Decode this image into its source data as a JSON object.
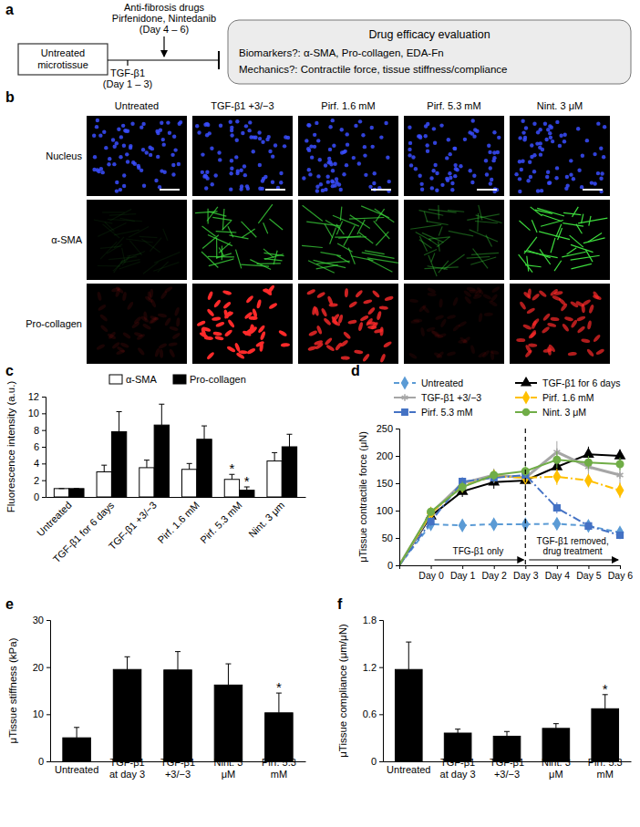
{
  "diagram": {
    "panel_label": "a",
    "drugs": [
      "Anti-fibrosis drugs",
      "Pirfenidone, Nintedanib",
      "(Day 4 – 6)"
    ],
    "start": "Untreated\nmicrotissue",
    "stimulus": [
      "TGF-β1",
      "(Day 1 – 3)"
    ],
    "evaluation": [
      "Drug efficacy evaluation",
      "Biomarkers?: α-SMA, Pro-collagen, EDA-Fn",
      "Mechanics?: Contractile force, tissue stiffness/compliance"
    ]
  },
  "images": {
    "panel_label": "b",
    "columns": [
      "Untreated",
      "TGF-β1 +3/−3",
      "Pirf. 1.6 mM",
      "Pirf. 5.3 mM",
      "Nint. 3 μM"
    ],
    "rows": [
      {
        "name": "Nucleus",
        "color": "#3a4dff"
      },
      {
        "name": "α-SMA",
        "color": "#3ddc3d"
      },
      {
        "name": "Pro-collagen",
        "color": "#ff2a2a"
      }
    ]
  },
  "chart_data": [
    {
      "panel_label": "c",
      "type": "bar",
      "y_label": "Fluorescence intensity (a.u.)",
      "categories": [
        "Untreated",
        "TGF-β1 for 6 days",
        "TGF-β1 +3/−3",
        "Pirf. 1.6 mM",
        "Pirf. 5.3 mM",
        "Nint. 3 μm"
      ],
      "series": [
        {
          "name": "α-SMA",
          "color": "#ffffff",
          "values": [
            1,
            3.0,
            3.5,
            3.3,
            2.1,
            4.3
          ],
          "errors": [
            0,
            0.8,
            0.9,
            0.7,
            0.6,
            1.0
          ]
        },
        {
          "name": "Pro-collagen",
          "color": "#000000",
          "values": [
            1,
            7.8,
            8.6,
            6.9,
            0.8,
            6.0
          ],
          "errors": [
            0,
            2.4,
            2.5,
            1.6,
            0.4,
            1.5
          ]
        }
      ],
      "ylim": [
        0,
        12
      ],
      "yticks": [
        0,
        2,
        4,
        6,
        8,
        10,
        12
      ],
      "legend": "top",
      "annotations": [
        {
          "text": "*",
          "category": 4,
          "series": 0
        },
        {
          "text": "*",
          "category": 4,
          "series": 1
        }
      ]
    },
    {
      "panel_label": "d",
      "type": "line",
      "y_label": "μTissue contractile force (μN)",
      "categories": [
        null,
        "Day 0",
        "Day 1",
        "Day 2",
        "Day 3",
        "Day 4",
        "Day 5",
        "Day 6"
      ],
      "ylim": [
        0,
        250
      ],
      "yticks": [
        0,
        50,
        100,
        150,
        200,
        250
      ],
      "legend": "top left",
      "series": [
        {
          "name": "Untreated",
          "color": "#5b9bd5",
          "marker": "diamond",
          "line_style": "dashed",
          "values": [
            0,
            75,
            73,
            75,
            75,
            76,
            72,
            60
          ],
          "errors": [
            0,
            6,
            4,
            4,
            4,
            4,
            4,
            4
          ]
        },
        {
          "name": "TGF-β1 for 6 days",
          "color": "#000000",
          "marker": "triangle",
          "line_style": "solid",
          "values": [
            0,
            90,
            135,
            152,
            155,
            180,
            203,
            200
          ],
          "errors": [
            0,
            8,
            10,
            12,
            10,
            15,
            14,
            12
          ]
        },
        {
          "name": "TGF-β1 +3/−3",
          "color": "#a6a6a6",
          "marker": "asterisk",
          "line_style": "solid",
          "values": [
            0,
            95,
            150,
            165,
            160,
            207,
            180,
            165
          ],
          "errors": [
            0,
            8,
            10,
            12,
            10,
            20,
            15,
            18
          ]
        },
        {
          "name": "Pirf. 1.6 mM",
          "color": "#ffc000",
          "marker": "diamond",
          "line_style": "dashdot",
          "values": [
            0,
            95,
            145,
            163,
            160,
            162,
            155,
            137
          ],
          "errors": [
            0,
            8,
            10,
            12,
            10,
            15,
            12,
            14
          ]
        },
        {
          "name": "Pirf. 5.3 mM",
          "color": "#4472c4",
          "marker": "square",
          "line_style": "dashdot",
          "values": [
            0,
            80,
            153,
            160,
            165,
            105,
            72,
            55
          ],
          "errors": [
            0,
            8,
            8,
            10,
            10,
            10,
            5,
            5
          ]
        },
        {
          "name": "Nint. 3 μM",
          "color": "#70ad47",
          "marker": "circle",
          "line_style": "solid",
          "values": [
            0,
            98,
            143,
            165,
            172,
            193,
            188,
            185
          ],
          "errors": [
            0,
            8,
            10,
            10,
            10,
            15,
            12,
            12
          ]
        }
      ],
      "annotations": [
        {
          "type": "vline",
          "x": "Day 3"
        },
        {
          "text": "TFG-β1 only",
          "from": "Day 0",
          "to": "Day 3"
        },
        {
          "text": "TGF-β1 removed,\ndrug treatment",
          "from": "Day 3",
          "to": "Day 6"
        }
      ]
    },
    {
      "panel_label": "e",
      "type": "bar",
      "y_label": "μTissue stiffness (kPa)",
      "categories": [
        "Untreated",
        "TGF-β1\nat day 3",
        "TGF-β1\n+3/−3",
        "Nint. 3\nμM",
        "Pirf. 5.3\nmM"
      ],
      "values": [
        5,
        19.5,
        19.4,
        16.2,
        10.3
      ],
      "errors": [
        2.2,
        2.7,
        3.9,
        4.5,
        4.2
      ],
      "color": "#000000",
      "ylim": [
        0,
        30
      ],
      "yticks": [
        0,
        10,
        20,
        30
      ],
      "annotations": [
        {
          "text": "*",
          "category": 4
        }
      ]
    },
    {
      "panel_label": "f",
      "type": "bar",
      "y_label": "μTissue compliance (μm/μN)",
      "categories": [
        "Untreated",
        "TGF-β1\nat day 3",
        "TGF-β1\n+3/−3",
        "Nint. 3\nμM",
        "Pirf. 5.3\nmM"
      ],
      "values": [
        1.17,
        0.36,
        0.32,
        0.42,
        0.67
      ],
      "errors": [
        0.35,
        0.05,
        0.06,
        0.06,
        0.18
      ],
      "color": "#000000",
      "ylim": [
        0,
        1.8
      ],
      "yticks": [
        0,
        0.6,
        1.2,
        1.8
      ],
      "annotations": [
        {
          "text": "*",
          "category": 4
        }
      ]
    }
  ]
}
